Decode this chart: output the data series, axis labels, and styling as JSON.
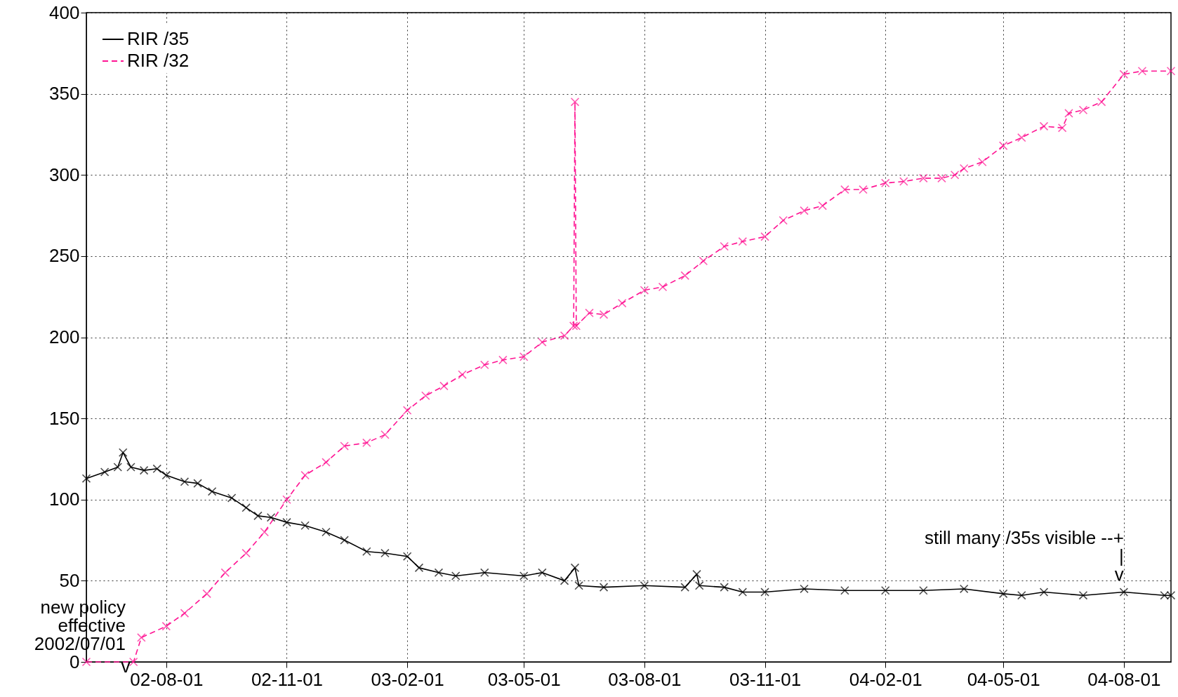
{
  "chart_data": {
    "type": "line",
    "xlim": [
      "2002-06-01",
      "2004-09-06"
    ],
    "xticks": [
      {
        "value": "2002-08-01",
        "label": "02-08-01"
      },
      {
        "value": "2002-11-01",
        "label": "02-11-01"
      },
      {
        "value": "2003-02-01",
        "label": "03-02-01"
      },
      {
        "value": "2003-05-01",
        "label": "03-05-01"
      },
      {
        "value": "2003-08-01",
        "label": "03-08-01"
      },
      {
        "value": "2003-11-01",
        "label": "03-11-01"
      },
      {
        "value": "2004-02-01",
        "label": "04-02-01"
      },
      {
        "value": "2004-05-01",
        "label": "04-05-01"
      },
      {
        "value": "2004-08-01",
        "label": "04-08-01"
      }
    ],
    "ylim": [
      0,
      400
    ],
    "yticks": [
      0,
      50,
      100,
      150,
      200,
      250,
      300,
      350,
      400
    ],
    "grid": true,
    "legend": "top left",
    "marker": "cross",
    "series": [
      {
        "name": "RIR /35",
        "color": "#000000",
        "line_style": "solid",
        "x": [
          "2002-06-01",
          "2002-06-15",
          "2002-06-25",
          "2002-06-29",
          "2002-07-05",
          "2002-07-15",
          "2002-07-25",
          "2002-08-01",
          "2002-08-15",
          "2002-08-25",
          "2002-09-05",
          "2002-09-20",
          "2002-10-01",
          "2002-10-10",
          "2002-10-20",
          "2002-11-01",
          "2002-11-15",
          "2002-12-01",
          "2002-12-15",
          "2003-01-01",
          "2003-01-15",
          "2003-02-01",
          "2003-02-10",
          "2003-02-25",
          "2003-03-10",
          "2003-04-01",
          "2003-05-01",
          "2003-05-15",
          "2003-06-01",
          "2003-06-09",
          "2003-06-12",
          "2003-07-01",
          "2003-08-01",
          "2003-09-01",
          "2003-09-10",
          "2003-09-12",
          "2003-10-01",
          "2003-10-15",
          "2003-11-01",
          "2003-12-01",
          "2004-01-01",
          "2004-02-01",
          "2004-03-01",
          "2004-04-01",
          "2004-05-01",
          "2004-05-15",
          "2004-06-01",
          "2004-07-01",
          "2004-08-01",
          "2004-09-01",
          "2004-09-06"
        ],
        "values": [
          113,
          117,
          120,
          129,
          120,
          118,
          119,
          115,
          111,
          110,
          105,
          101,
          95,
          90,
          89,
          86,
          84,
          80,
          75,
          68,
          67,
          65,
          58,
          55,
          53,
          55,
          53,
          55,
          50,
          58,
          47,
          46,
          47,
          46,
          54,
          47,
          46,
          43,
          43,
          45,
          44,
          44,
          44,
          45,
          42,
          41,
          43,
          41,
          43,
          41,
          41
        ]
      },
      {
        "name": "RIR /32",
        "color": "#ff1493",
        "line_style": "dashed",
        "x": [
          "2002-06-01",
          "2002-07-07",
          "2002-07-13",
          "2002-08-01",
          "2002-08-15",
          "2002-09-01",
          "2002-09-15",
          "2002-10-01",
          "2002-10-15",
          "2002-11-01",
          "2002-11-15",
          "2002-12-01",
          "2002-12-15",
          "2003-01-01",
          "2003-01-15",
          "2003-02-01",
          "2003-02-15",
          "2003-03-01",
          "2003-03-15",
          "2003-04-01",
          "2003-04-15",
          "2003-05-01",
          "2003-05-15",
          "2003-06-01",
          "2003-06-08",
          "2003-06-09",
          "2003-06-10",
          "2003-06-20",
          "2003-07-01",
          "2003-07-15",
          "2003-08-01",
          "2003-08-15",
          "2003-09-01",
          "2003-09-15",
          "2003-10-01",
          "2003-10-15",
          "2003-11-01",
          "2003-11-15",
          "2003-12-01",
          "2003-12-15",
          "2004-01-01",
          "2004-01-15",
          "2004-02-01",
          "2004-02-15",
          "2004-03-01",
          "2004-03-15",
          "2004-03-25",
          "2004-04-01",
          "2004-04-15",
          "2004-05-01",
          "2004-05-15",
          "2004-06-01",
          "2004-06-15",
          "2004-06-20",
          "2004-07-01",
          "2004-07-15",
          "2004-08-01",
          "2004-08-15",
          "2004-09-06"
        ],
        "values": [
          0,
          0,
          15,
          22,
          30,
          42,
          55,
          67,
          80,
          100,
          115,
          123,
          133,
          135,
          140,
          155,
          164,
          170,
          177,
          183,
          186,
          188,
          197,
          201,
          207,
          345,
          207,
          215,
          214,
          221,
          229,
          231,
          238,
          247,
          256,
          259,
          262,
          272,
          278,
          281,
          291,
          291,
          295,
          296,
          298,
          298,
          300,
          304,
          308,
          318,
          323,
          330,
          329,
          338,
          340,
          345,
          362,
          364,
          364
        ]
      }
    ],
    "annotations": [
      {
        "text": "new policy\neffective\n2002/07/01",
        "x": "2002-07-01",
        "y": 0
      },
      {
        "text": "v",
        "x": "2002-07-01",
        "y": 0
      },
      {
        "text": "still many /35s visible --+\n|\nv",
        "x": "2004-08-01",
        "y": 43
      }
    ]
  }
}
